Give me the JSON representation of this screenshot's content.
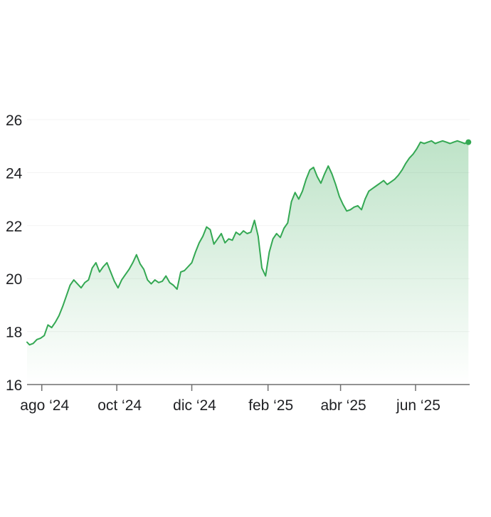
{
  "chart_data": {
    "type": "area",
    "title": "",
    "xlabel": "",
    "ylabel": "",
    "ylim": [
      16,
      26
    ],
    "yticks": [
      16,
      18,
      20,
      22,
      24,
      26
    ],
    "y_tick_labels": [
      "16",
      "18",
      "20",
      "22",
      "24",
      "26"
    ],
    "xlim": [
      "2024-07-20",
      "2025-07-15"
    ],
    "x_ticks": [
      {
        "date": "2024-08-01",
        "label": "ago ‘24"
      },
      {
        "date": "2024-10-01",
        "label": "oct ‘24"
      },
      {
        "date": "2024-12-01",
        "label": "dic ‘24"
      },
      {
        "date": "2025-02-01",
        "label": "feb ‘25"
      },
      {
        "date": "2025-04-01",
        "label": "abr ‘25"
      },
      {
        "date": "2025-06-01",
        "label": "jun ‘25"
      }
    ],
    "grid": true,
    "line_color": "#34a853",
    "fill_color": "#34a853",
    "end_marker": true,
    "series": [
      {
        "x": [
          "2024-07-20",
          "2024-07-22",
          "2024-07-25",
          "2024-07-28",
          "2024-07-31",
          "2024-08-03",
          "2024-08-06",
          "2024-08-09",
          "2024-08-12",
          "2024-08-15",
          "2024-08-18",
          "2024-08-21",
          "2024-08-24",
          "2024-08-27",
          "2024-08-30",
          "2024-09-02",
          "2024-09-05",
          "2024-09-08",
          "2024-09-11",
          "2024-09-14",
          "2024-09-17",
          "2024-09-20",
          "2024-09-23",
          "2024-09-26",
          "2024-09-29",
          "2024-10-02",
          "2024-10-05",
          "2024-10-08",
          "2024-10-11",
          "2024-10-14",
          "2024-10-17",
          "2024-10-20",
          "2024-10-23",
          "2024-10-26",
          "2024-10-29",
          "2024-11-01",
          "2024-11-04",
          "2024-11-07",
          "2024-11-10",
          "2024-11-13",
          "2024-11-16",
          "2024-11-19",
          "2024-11-22",
          "2024-11-25",
          "2024-11-28",
          "2024-12-01",
          "2024-12-04",
          "2024-12-07",
          "2024-12-10",
          "2024-12-13",
          "2024-12-16",
          "2024-12-19",
          "2024-12-22",
          "2024-12-25",
          "2024-12-28",
          "2024-12-31",
          "2025-01-03",
          "2025-01-06",
          "2025-01-09",
          "2025-01-12",
          "2025-01-15",
          "2025-01-18",
          "2025-01-21",
          "2025-01-24",
          "2025-01-27",
          "2025-01-30",
          "2025-02-02",
          "2025-02-05",
          "2025-02-08",
          "2025-02-11",
          "2025-02-14",
          "2025-02-17",
          "2025-02-20",
          "2025-02-23",
          "2025-02-26",
          "2025-03-01",
          "2025-03-04",
          "2025-03-07",
          "2025-03-10",
          "2025-03-13",
          "2025-03-16",
          "2025-03-19",
          "2025-03-22",
          "2025-03-25",
          "2025-03-28",
          "2025-03-31",
          "2025-04-03",
          "2025-04-06",
          "2025-04-09",
          "2025-04-12",
          "2025-04-15",
          "2025-04-18",
          "2025-04-21",
          "2025-04-24",
          "2025-04-27",
          "2025-04-30",
          "2025-05-03",
          "2025-05-06",
          "2025-05-09",
          "2025-05-12",
          "2025-05-15",
          "2025-05-18",
          "2025-05-21",
          "2025-05-24",
          "2025-05-27",
          "2025-05-30",
          "2025-06-02",
          "2025-06-05",
          "2025-06-08",
          "2025-06-11",
          "2025-06-14",
          "2025-06-17",
          "2025-06-20",
          "2025-06-23",
          "2025-06-26",
          "2025-06-29",
          "2025-07-02",
          "2025-07-05",
          "2025-07-08",
          "2025-07-11",
          "2025-07-14"
        ],
        "values": [
          17.6,
          17.5,
          17.55,
          17.7,
          17.75,
          17.85,
          18.25,
          18.15,
          18.35,
          18.6,
          18.95,
          19.35,
          19.75,
          19.95,
          19.8,
          19.65,
          19.85,
          19.95,
          20.4,
          20.6,
          20.25,
          20.45,
          20.6,
          20.25,
          19.9,
          19.65,
          19.95,
          20.15,
          20.35,
          20.6,
          20.9,
          20.55,
          20.35,
          19.95,
          19.8,
          19.95,
          19.85,
          19.9,
          20.1,
          19.85,
          19.75,
          19.6,
          20.25,
          20.3,
          20.45,
          20.6,
          21.0,
          21.35,
          21.6,
          21.95,
          21.85,
          21.3,
          21.5,
          21.7,
          21.35,
          21.5,
          21.45,
          21.75,
          21.65,
          21.8,
          21.7,
          21.75,
          22.2,
          21.6,
          20.4,
          20.1,
          21.0,
          21.5,
          21.7,
          21.55,
          21.9,
          22.1,
          22.9,
          23.25,
          23.0,
          23.3,
          23.75,
          24.1,
          24.2,
          23.85,
          23.6,
          23.95,
          24.25,
          23.95,
          23.55,
          23.1,
          22.8,
          22.55,
          22.6,
          22.7,
          22.75,
          22.6,
          23.0,
          23.3,
          23.4,
          23.5,
          23.6,
          23.7,
          23.55,
          23.65,
          23.75,
          23.9,
          24.1,
          24.35,
          24.55,
          24.7,
          24.9,
          25.15,
          25.1,
          25.15,
          25.2,
          25.1,
          25.15,
          25.2,
          25.15,
          25.1,
          25.15,
          25.2,
          25.15,
          25.1,
          25.15
        ]
      }
    ]
  }
}
